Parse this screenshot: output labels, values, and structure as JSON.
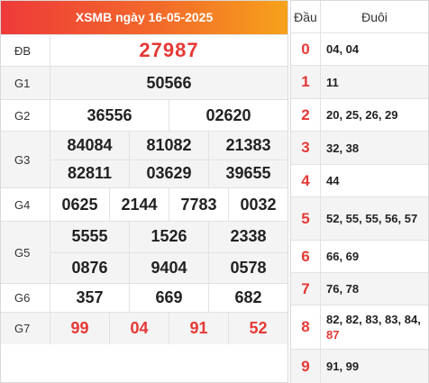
{
  "title": "XSMB ngày 16-05-2025",
  "prizes": {
    "db": {
      "label": "ĐB",
      "numbers": [
        "27987"
      ]
    },
    "g1": {
      "label": "G1",
      "numbers": [
        "50566"
      ]
    },
    "g2": {
      "label": "G2",
      "numbers": [
        "36556",
        "02620"
      ]
    },
    "g3": {
      "label": "G3",
      "numbers": [
        "84084",
        "81082",
        "21383",
        "82811",
        "03629",
        "39655"
      ]
    },
    "g4": {
      "label": "G4",
      "numbers": [
        "0625",
        "2144",
        "7783",
        "0032"
      ]
    },
    "g5": {
      "label": "G5",
      "numbers": [
        "5555",
        "1526",
        "2338",
        "0876",
        "9404",
        "0578"
      ]
    },
    "g6": {
      "label": "G6",
      "numbers": [
        "357",
        "669",
        "682"
      ]
    },
    "g7": {
      "label": "G7",
      "numbers": [
        "99",
        "04",
        "91",
        "52"
      ]
    }
  },
  "loto": {
    "head_label": "Đầu",
    "tail_label": "Đuôi",
    "rows": [
      {
        "dau": "0",
        "duoi": "04, 04",
        "highlight": ""
      },
      {
        "dau": "1",
        "duoi": "11",
        "highlight": ""
      },
      {
        "dau": "2",
        "duoi": "20, 25, 26, 29",
        "highlight": ""
      },
      {
        "dau": "3",
        "duoi": "32, 38",
        "highlight": ""
      },
      {
        "dau": "4",
        "duoi": "44",
        "highlight": ""
      },
      {
        "dau": "5",
        "duoi": "52, 55, 55, 56, 57",
        "highlight": ""
      },
      {
        "dau": "6",
        "duoi": "66, 69",
        "highlight": ""
      },
      {
        "dau": "7",
        "duoi": "76, 78",
        "highlight": ""
      },
      {
        "dau": "8",
        "duoi": "82, 82, 83, 83, 84, ",
        "highlight": "87"
      },
      {
        "dau": "9",
        "duoi": "91, 99",
        "highlight": ""
      }
    ]
  },
  "colors": {
    "accent_red": "#e53935",
    "header_gradient_start": "#ee3a3a",
    "header_gradient_end": "#f7a21b"
  }
}
